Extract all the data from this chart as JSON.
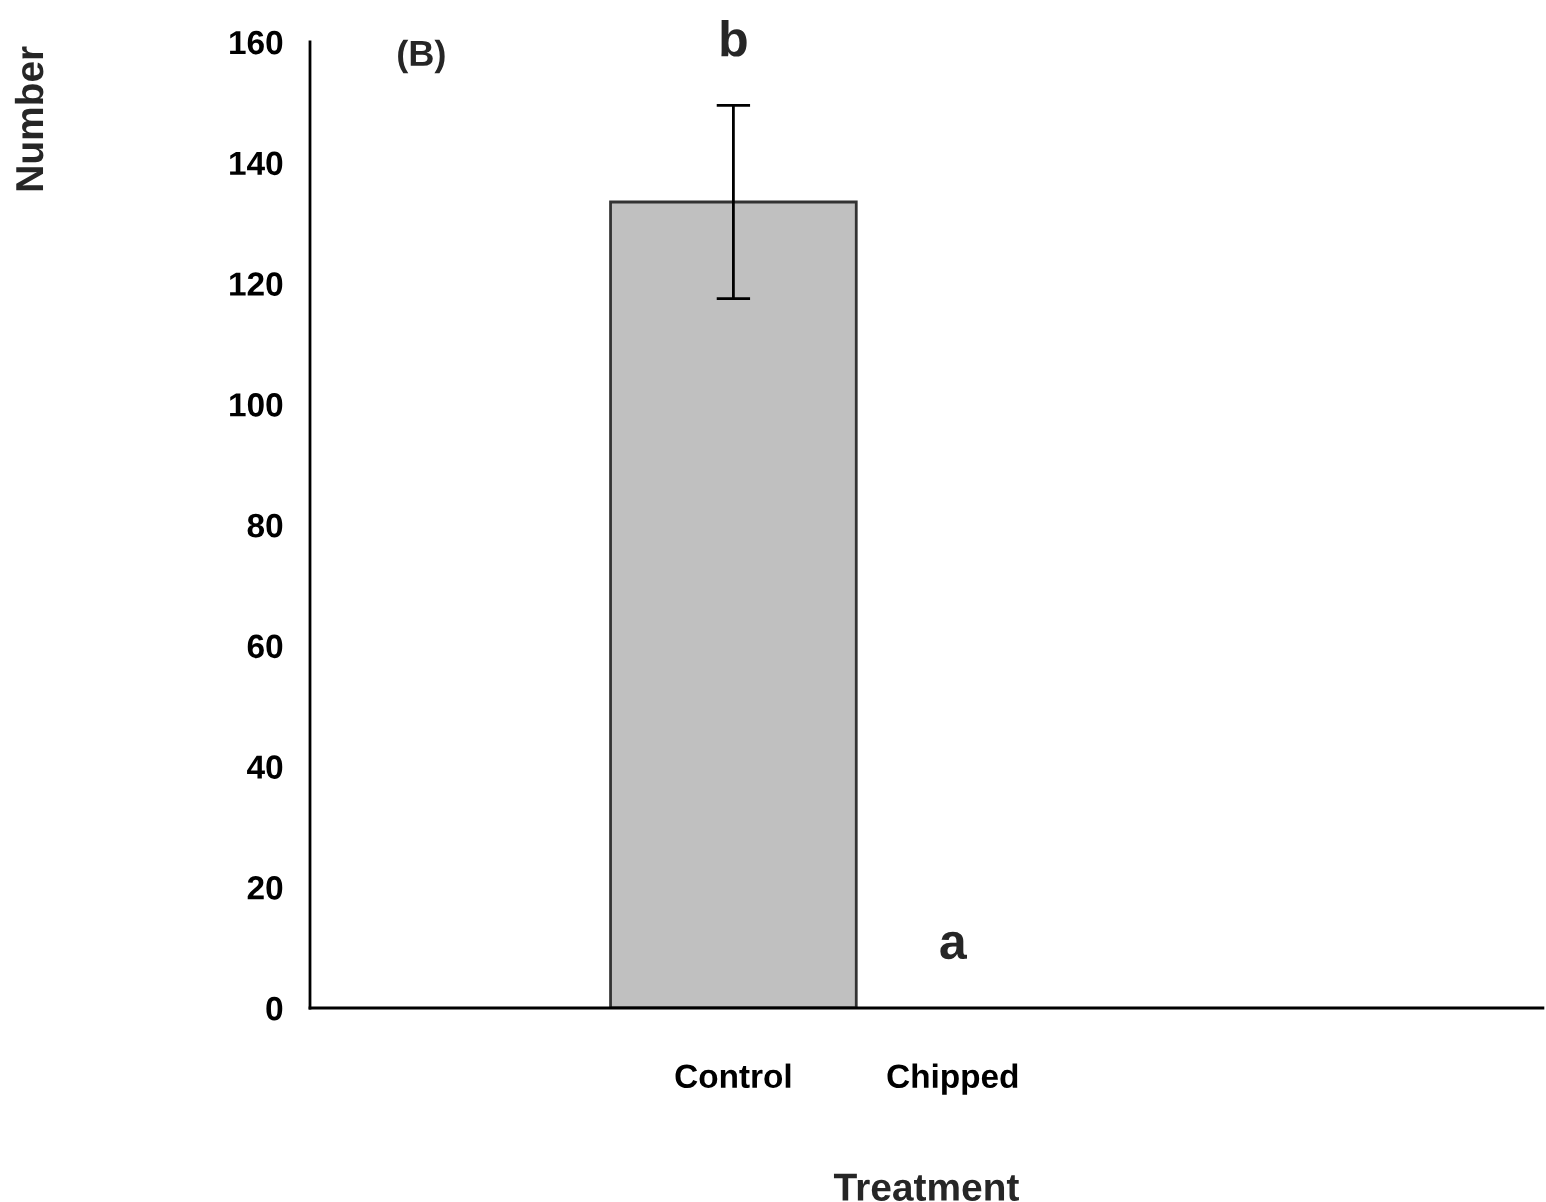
{
  "chart_data": {
    "type": "bar",
    "xlabel": "Treatment",
    "ylabel": "Number",
    "categories": [
      "Control",
      "Chipped"
    ],
    "values": [
      133.5,
      0
    ],
    "errors": [
      16,
      null
    ],
    "color": "#c0c0c0",
    "ylim": [
      0,
      160
    ],
    "yticks": [
      0,
      20,
      40,
      60,
      80,
      100,
      120,
      140,
      160
    ],
    "grid": false,
    "annotations": [
      "(B)",
      "b",
      "a"
    ]
  }
}
